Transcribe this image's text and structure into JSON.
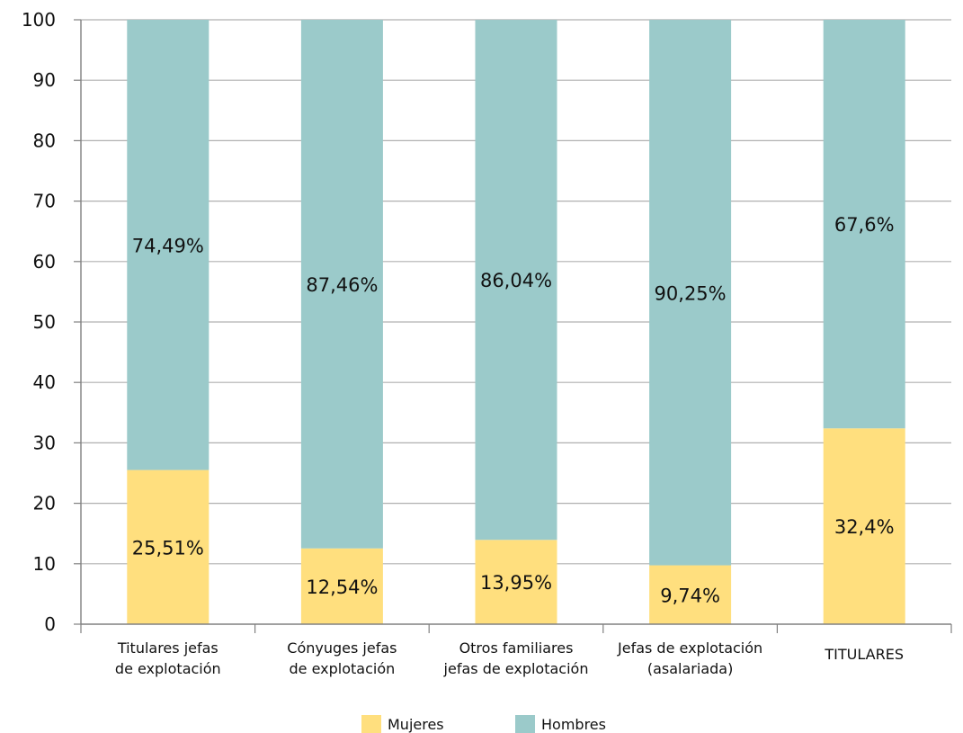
{
  "chart_data": {
    "type": "bar",
    "stacked": true,
    "categories": [
      [
        "Titulares jefas",
        "de explotación"
      ],
      [
        "Cónyuges jefas",
        "de explotación"
      ],
      [
        "Otros familiares",
        "jefas de explotación"
      ],
      [
        "Jefas de explotación",
        "(asalariada)"
      ],
      [
        "TITULARES"
      ]
    ],
    "series": [
      {
        "name": "Mujeres",
        "color": "#FFDF7E",
        "values": [
          25.51,
          12.54,
          13.95,
          9.74,
          32.4
        ],
        "labels": [
          "25,51%",
          "12,54%",
          "13,95%",
          "9,74%",
          "32,4%"
        ]
      },
      {
        "name": "Hombres",
        "color": "#9BCACA",
        "values": [
          74.49,
          87.46,
          86.04,
          90.25,
          67.6
        ],
        "labels": [
          "74,49%",
          "87,46%",
          "86,04%",
          "90,25%",
          "67,6%"
        ]
      }
    ],
    "ylim": [
      0,
      100
    ],
    "yticks": [
      "0",
      "10",
      "20",
      "30",
      "40",
      "50",
      "60",
      "70",
      "80",
      "90",
      "100"
    ],
    "grid": true,
    "legend": "bottom"
  }
}
